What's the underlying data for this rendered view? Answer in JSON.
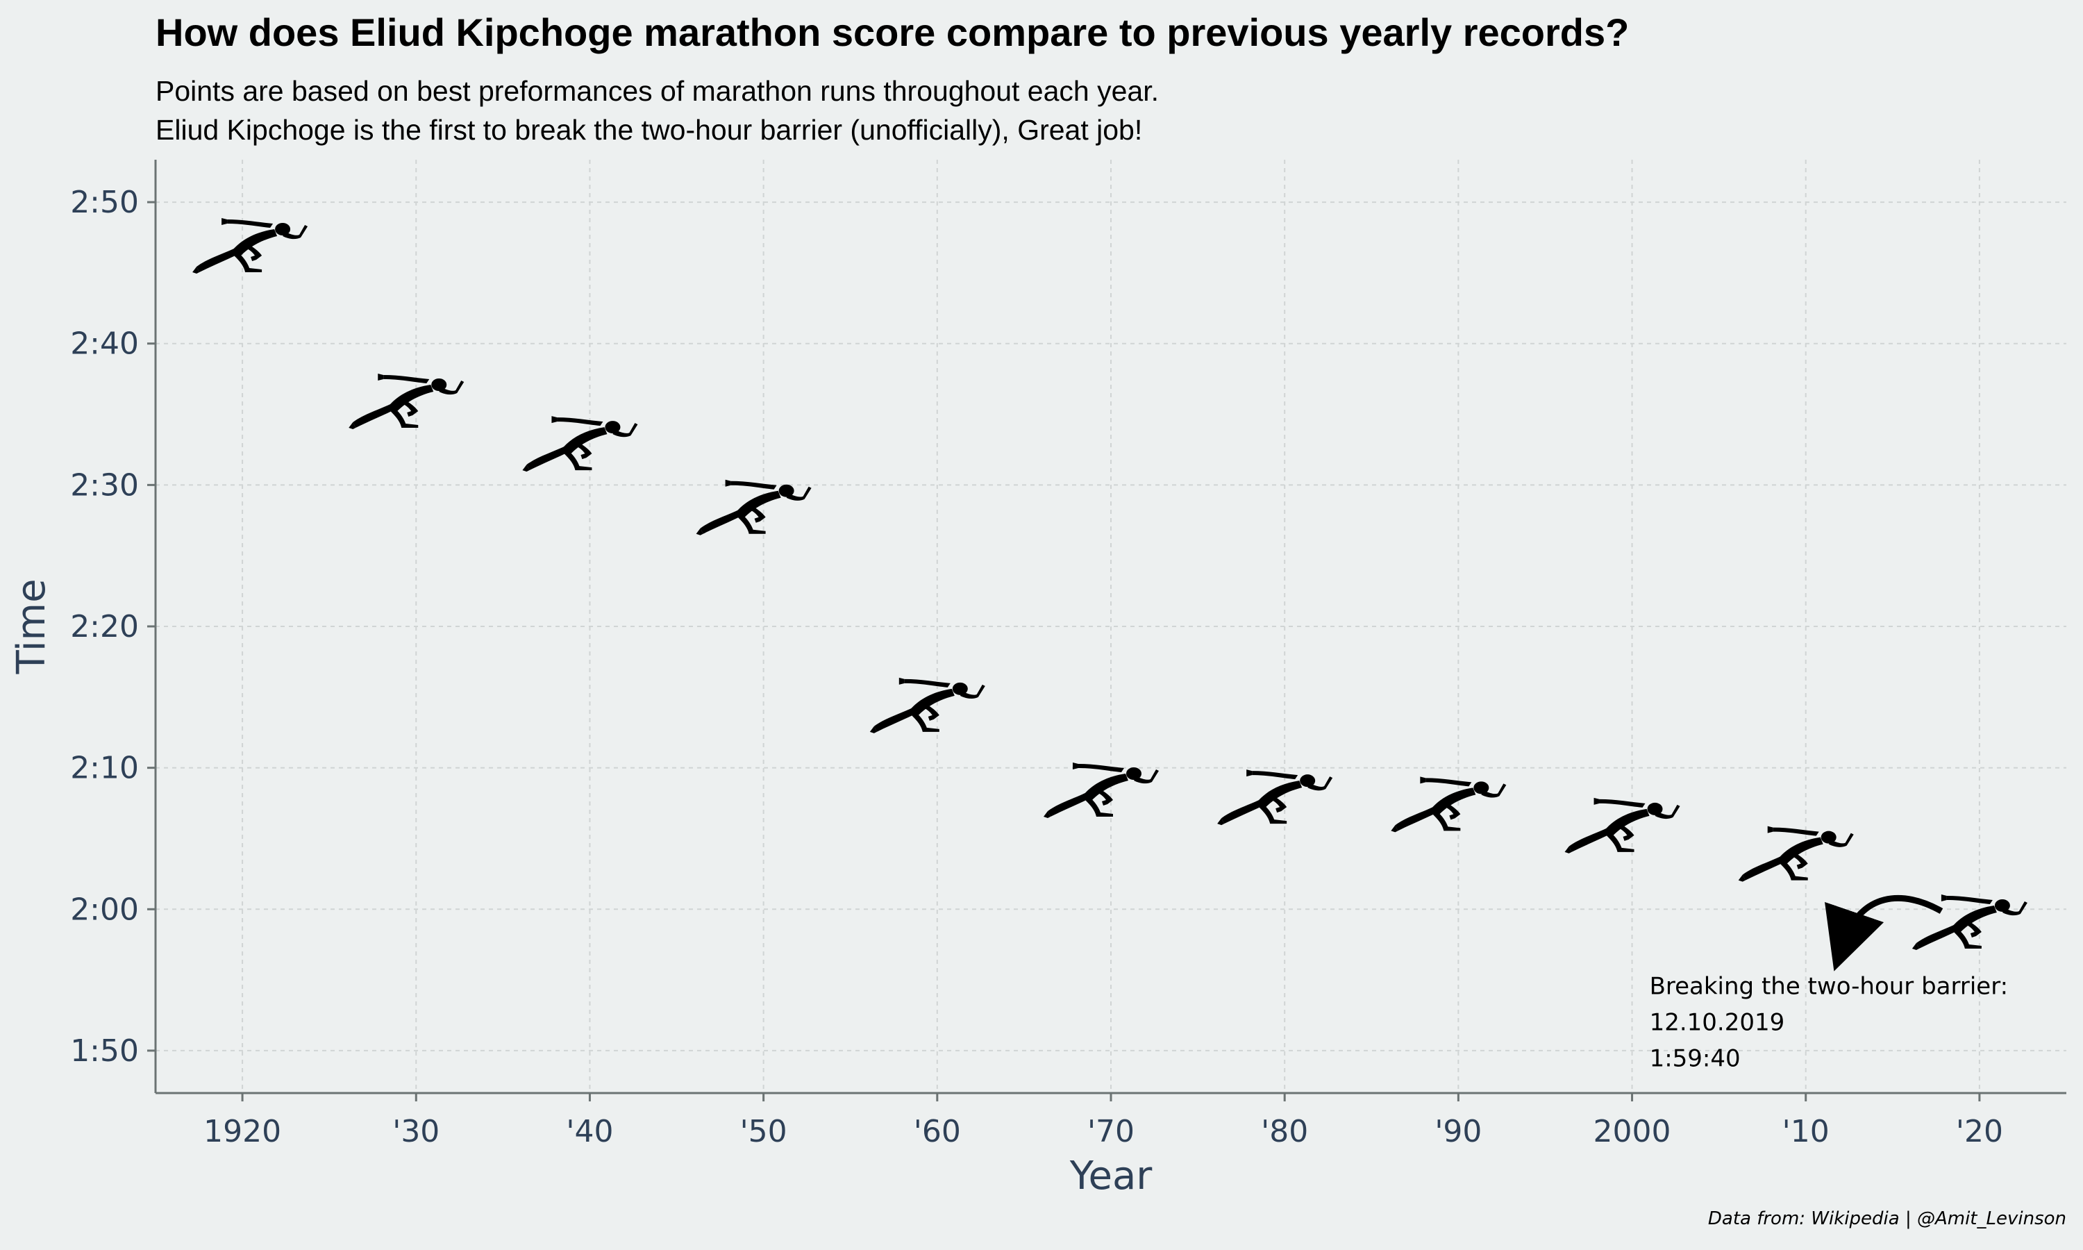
{
  "title": "How does Eliud Kipchoge marathon score compare to previous yearly records?",
  "subtitle_lines": [
    "Points are based on best preformances of marathon runs throughout each year.",
    "Eliud Kipchoge is the first to break the two-hour barrier (unofficially), Great job!"
  ],
  "caption": "Data from: Wikipedia | @Amit_Levinson",
  "colors": {
    "background": "#edf0f0",
    "axis_text": "#2e4057",
    "grid": "#d0d4d4",
    "marker": "#000000"
  },
  "chart_data": {
    "type": "scatter",
    "marker_icon": "sprinter-icon",
    "xlabel": "Year",
    "ylabel": "Time",
    "xlim": [
      1915,
      2025
    ],
    "ylim": [
      107,
      173
    ],
    "x_ticks": [
      1920,
      1930,
      1940,
      1950,
      1960,
      1970,
      1980,
      1990,
      2000,
      2010,
      2020
    ],
    "x_tick_labels": [
      "1920",
      "'30",
      "'40",
      "'50",
      "'60",
      "'70",
      "'80",
      "'90",
      "2000",
      "'10",
      "'20"
    ],
    "y_ticks": [
      110,
      120,
      130,
      140,
      150,
      160,
      170
    ],
    "y_tick_labels": [
      "1:50",
      "2:00",
      "2:10",
      "2:20",
      "2:30",
      "2:40",
      "2:50"
    ],
    "grid": true,
    "points": [
      {
        "x": 1920,
        "y": 167.5
      },
      {
        "x": 1929,
        "y": 156.5
      },
      {
        "x": 1939,
        "y": 153.5
      },
      {
        "x": 1949,
        "y": 149
      },
      {
        "x": 1959,
        "y": 135
      },
      {
        "x": 1969,
        "y": 129
      },
      {
        "x": 1979,
        "y": 128.5
      },
      {
        "x": 1989,
        "y": 128
      },
      {
        "x": 1999,
        "y": 126.5
      },
      {
        "x": 2009,
        "y": 124.5
      },
      {
        "x": 2019,
        "y": 119.67
      }
    ],
    "annotation": {
      "lines": [
        "Breaking the two-hour barrier:",
        "12.10.2019",
        "1:59:40"
      ],
      "x": 2001,
      "y": 114
    }
  }
}
